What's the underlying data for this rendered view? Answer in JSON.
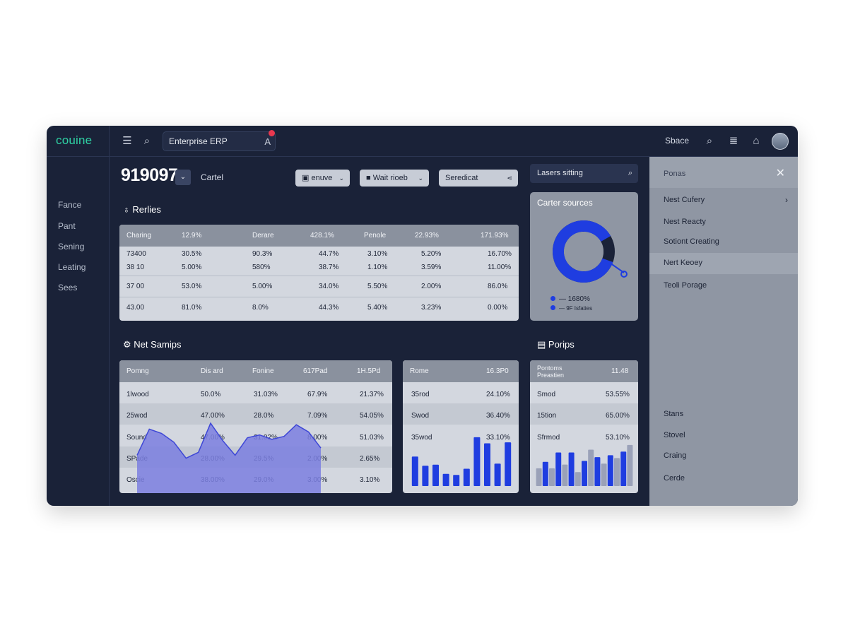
{
  "app": {
    "logo": "couine",
    "search_value": "Enterprise ERP",
    "space_label": "Sbace"
  },
  "sidebar": {
    "items": [
      "Fance",
      "Pant",
      "Sening",
      "Leating",
      "Sees"
    ]
  },
  "header": {
    "number": "919097",
    "cartel": "Cartel",
    "filters": [
      {
        "label": "enuve",
        "icon": "calendar-icon"
      },
      {
        "label": "Wait rioeb",
        "icon": "square-icon"
      },
      {
        "label": "Seredicat",
        "icon": "share-icon"
      }
    ]
  },
  "panel_search": {
    "value": "Lasers sitting"
  },
  "top_table": {
    "title": "Rerlies",
    "headers": [
      "Charing",
      "12.9%",
      "Derare",
      "428.1%",
      "Penole",
      "22.93%",
      "171.93%"
    ],
    "rows": [
      [
        "73400",
        "30.5%",
        "90.3%",
        "44.7%",
        "3.10%",
        "5.20%",
        "16.70%"
      ],
      [
        "38 10",
        "5.00%",
        "580%",
        "38.7%",
        "1.10%",
        "3.59%",
        "11.00%"
      ],
      [
        "37 00",
        "53.0%",
        "5.00%",
        "34.0%",
        "5.50%",
        "2.00%",
        "86.0%"
      ],
      [
        "43.00",
        "81.0%",
        "8.0%",
        "44.3%",
        "5.40%",
        "3.23%",
        "0.00%"
      ]
    ]
  },
  "donut": {
    "title": "Carter sources",
    "share": 0.86,
    "colors": {
      "arc": "#1f3de0",
      "rest": "#1a2238"
    },
    "legend": [
      "— 1680%",
      "— 9F Isfaties"
    ]
  },
  "bottom_table": {
    "title": "Net Samips",
    "headers": [
      "Pomng",
      "Dis ard",
      "Fonine",
      "617Pad",
      "1H.5Pd"
    ],
    "rows": [
      [
        "1lwood",
        "50.0%",
        "31.03%",
        "67.9%",
        "21.37%"
      ],
      [
        "25wod",
        "47.00%",
        "28.0%",
        "7.09%",
        "54.05%"
      ],
      [
        "Sound",
        "47.00%",
        "31.02%",
        "8.00%",
        "51.03%"
      ],
      [
        "SPade",
        "28.00%",
        "29.5%",
        "2.00%",
        "2.65%"
      ],
      [
        "Oscie",
        "38.00%",
        "29.0%",
        "3.00%",
        "3.10%"
      ]
    ]
  },
  "mini_table_a": {
    "headers": [
      "Rome",
      "16.3P0"
    ],
    "rows": [
      [
        "35rod",
        "24.10%"
      ],
      [
        "Swod",
        "36.40%"
      ],
      [
        "35wod",
        "33.10%"
      ]
    ]
  },
  "mini_table_b": {
    "title": "Porips",
    "headers": [
      "Pontoms Preastien",
      "11.48"
    ],
    "rows": [
      [
        "Smod",
        "53.55%"
      ],
      [
        "15tion",
        "65.00%"
      ],
      [
        "Sfrmod",
        "53.10%"
      ]
    ]
  },
  "chart_data": [
    {
      "type": "area",
      "values": [
        52,
        88,
        82,
        70,
        48,
        56,
        96,
        72,
        52,
        76,
        80,
        74,
        78,
        94,
        84,
        62
      ],
      "ylim": [
        0,
        100
      ],
      "colors": {
        "fill": "#7b7fe0",
        "line": "#3e47d6"
      }
    },
    {
      "type": "bar",
      "values": [
        58,
        40,
        42,
        24,
        22,
        34,
        96,
        84,
        44,
        86
      ],
      "ylim": [
        0,
        100
      ],
      "colors": {
        "bar": "#1f3de0"
      }
    },
    {
      "type": "bar",
      "values": [
        38,
        52,
        38,
        72,
        46,
        72,
        30,
        54,
        78,
        62,
        48,
        66,
        60,
        74,
        88
      ],
      "ylim": [
        0,
        100
      ],
      "colors": {
        "bar": "#1f3de0",
        "muted": "#9aa1b8"
      }
    }
  ],
  "right_panel": {
    "title": "Ponas",
    "items": [
      "Nest Cufery",
      "Nest Reacty",
      "Sotiont Creating",
      "Nert Keoey",
      "Teoli Porage"
    ],
    "lower_items": [
      "Stans",
      "Stovel",
      "Craing",
      "Cerde"
    ]
  }
}
